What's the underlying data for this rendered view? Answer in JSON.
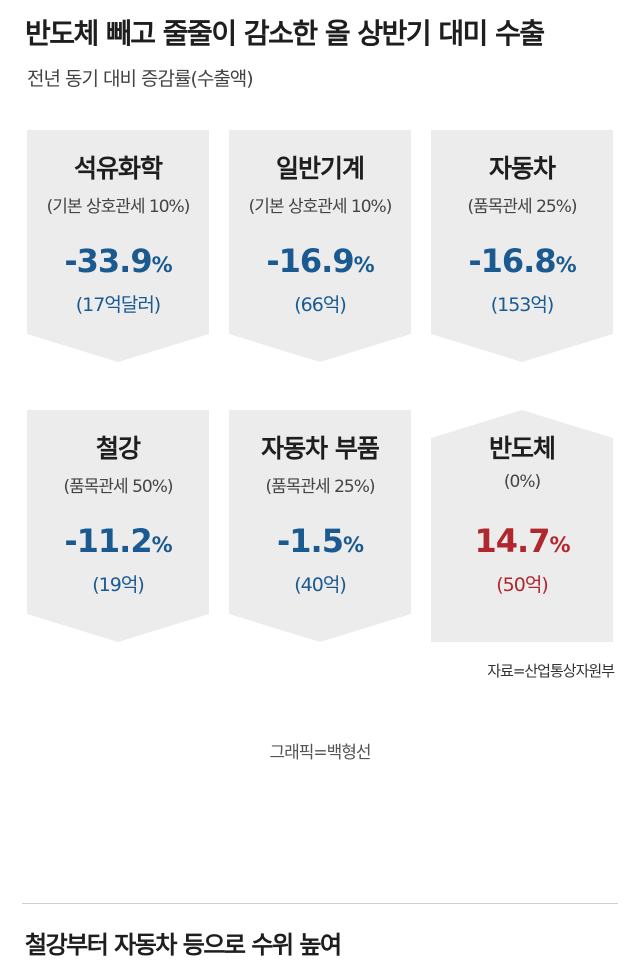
{
  "header": {
    "title": "반도체 빼고 줄줄이 감소한 올 상반기 대미 수출",
    "subtitle": "전년 동기 대비 증감률(수출액)"
  },
  "colors": {
    "negative": "#1a5a91",
    "positive": "#b0272d",
    "card_background": "#ececec"
  },
  "chart_data": {
    "type": "table",
    "title": "반도체 빼고 줄줄이 감소한 올 상반기 대미 수출",
    "subtitle": "전년 동기 대비 증감률(수출액)",
    "unit": "%",
    "items": [
      {
        "category": "석유화학",
        "tariff": "(기본 상호관세 10%)",
        "change_label": "-33.9",
        "change_value": -33.9,
        "percent_sign": "%",
        "amount": "(17억달러)",
        "direction": "down"
      },
      {
        "category": "일반기계",
        "tariff": "(기본 상호관세 10%)",
        "change_label": "-16.9",
        "change_value": -16.9,
        "percent_sign": "%",
        "amount": "(66억)",
        "direction": "down"
      },
      {
        "category": "자동차",
        "tariff": "(품목관세 25%)",
        "change_label": "-16.8",
        "change_value": -16.8,
        "percent_sign": "%",
        "amount": "(153억)",
        "direction": "down"
      },
      {
        "category": "철강",
        "tariff": "(품목관세 50%)",
        "change_label": "-11.2",
        "change_value": -11.2,
        "percent_sign": "%",
        "amount": "(19억)",
        "direction": "down"
      },
      {
        "category": "자동차 부품",
        "tariff": "(품목관세 25%)",
        "change_label": "-1.5",
        "change_value": -1.5,
        "percent_sign": "%",
        "amount": "(40억)",
        "direction": "down"
      },
      {
        "category": "반도체",
        "tariff": "(0%)",
        "change_label": "14.7",
        "change_value": 14.7,
        "percent_sign": "%",
        "amount": "(50억)",
        "direction": "up"
      }
    ]
  },
  "source": "자료=산업통상자원부",
  "credit": "그래픽=백형선",
  "footer": {
    "headline": "철강부터 자동차 등으로 수위 높여"
  }
}
